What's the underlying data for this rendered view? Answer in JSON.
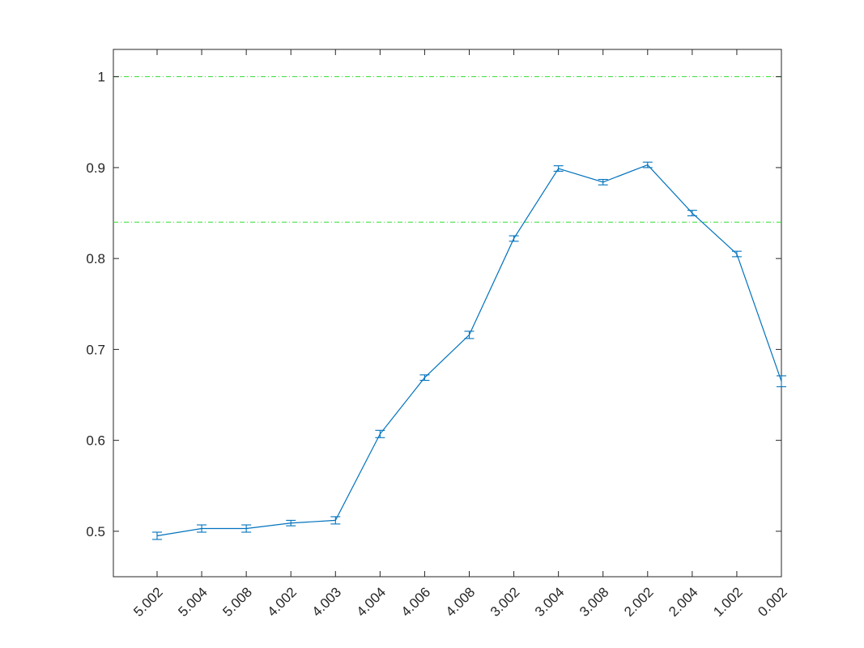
{
  "chart_data": {
    "type": "line",
    "title": "",
    "xlabel": "",
    "ylabel": "",
    "categories": [
      "5.002",
      "5.004",
      "5.008",
      "4.002",
      "4.003",
      "4.004",
      "4.006",
      "4.008",
      "3.002",
      "3.004",
      "3.008",
      "2.002",
      "2.004",
      "1.002",
      "0.002"
    ],
    "series": [
      {
        "values": [
          0.495,
          0.503,
          0.503,
          0.509,
          0.512,
          0.607,
          0.669,
          0.716,
          0.822,
          0.899,
          0.884,
          0.903,
          0.85,
          0.805,
          0.665
        ],
        "errors": [
          0.004,
          0.004,
          0.004,
          0.003,
          0.004,
          0.004,
          0.003,
          0.004,
          0.003,
          0.003,
          0.003,
          0.003,
          0.003,
          0.003,
          0.006
        ],
        "color": "#0072BD"
      }
    ],
    "reference_lines": [
      {
        "y": 1.0,
        "color": "#33dd33",
        "style": "dash-dot"
      },
      {
        "y": 0.84,
        "color": "#33dd33",
        "style": "dash-dot"
      }
    ],
    "ylim": [
      0.45,
      1.03
    ],
    "yticks": [
      0.5,
      0.6,
      0.7,
      0.8,
      0.9,
      1
    ],
    "ytick_labels": [
      "0.5",
      "0.6",
      "0.7",
      "0.8",
      "0.9",
      "1"
    ],
    "grid": false,
    "legend": "none"
  }
}
